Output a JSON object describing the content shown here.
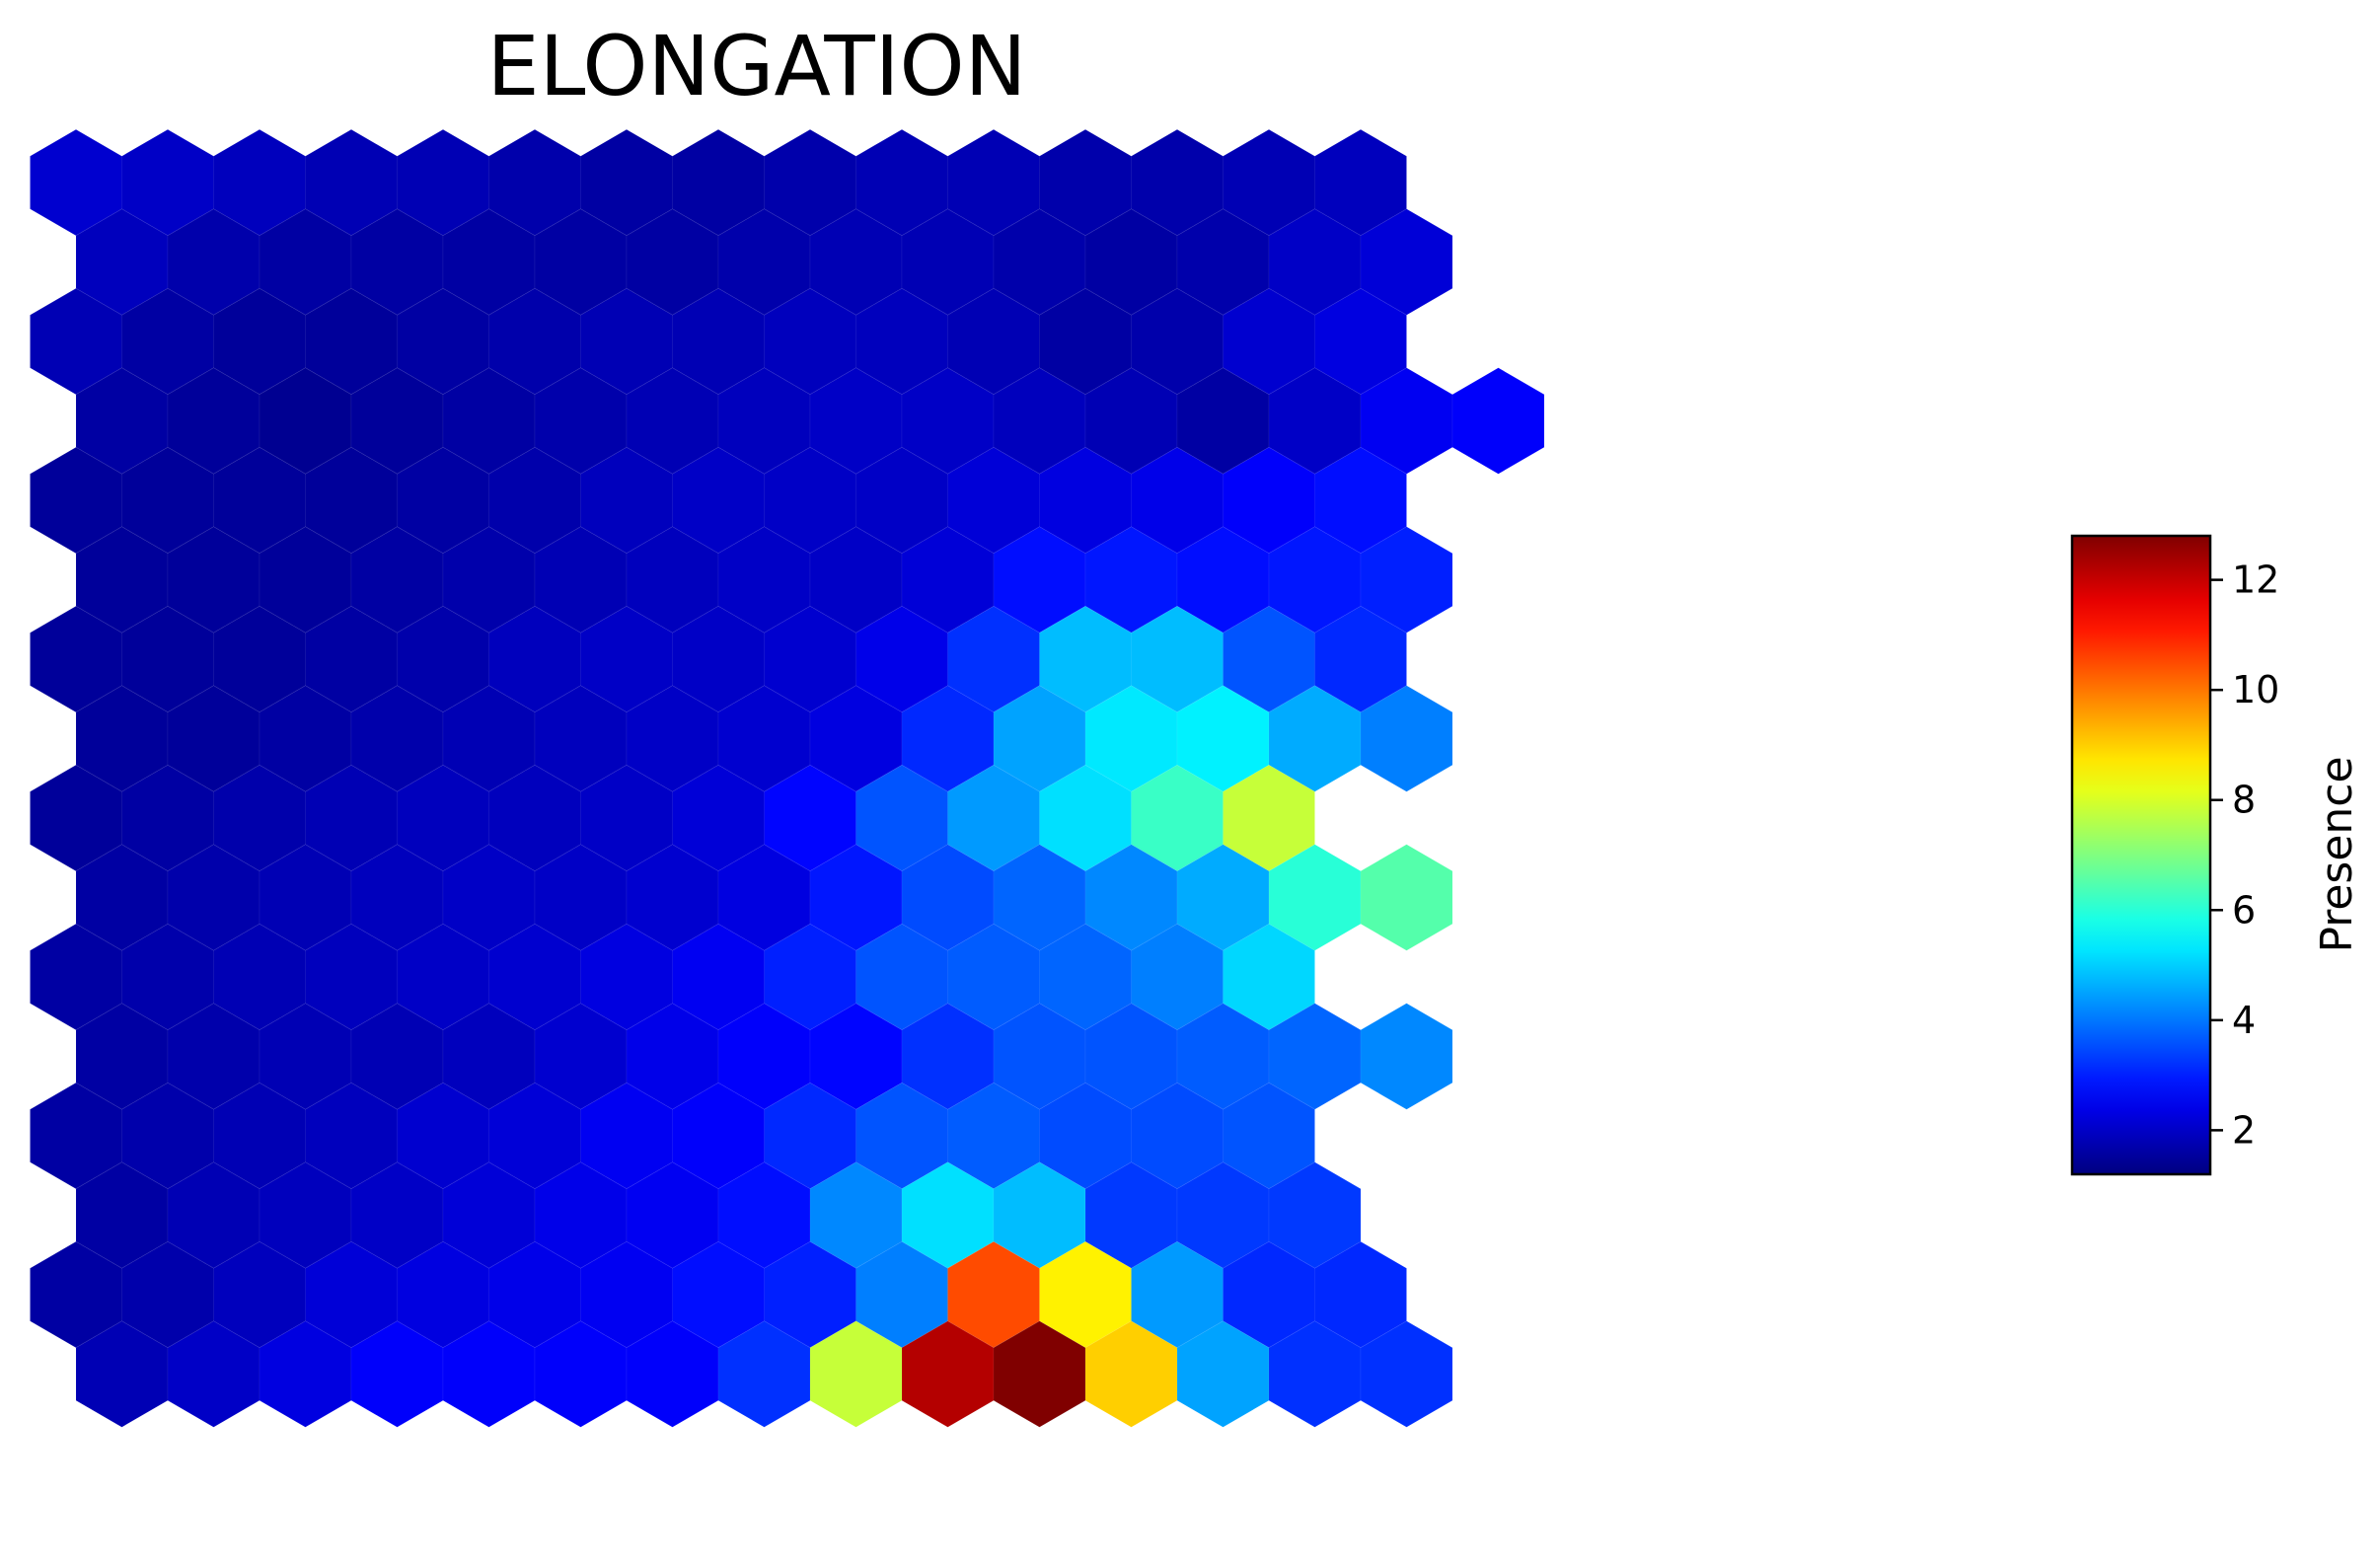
{
  "chart_data": {
    "type": "heatmap",
    "title": "ELONGATION",
    "layout": "hexagonal-grid",
    "colormap": "jet",
    "grid_lines": false,
    "axes_visible": false,
    "legend_placement": "right",
    "colorbar": {
      "label": "Presence",
      "range": [
        1.2,
        12.8
      ],
      "ticks": [
        2,
        4,
        6,
        8,
        10,
        12
      ]
    },
    "rows_top_to_bottom": [
      [
        2.1,
        2.0,
        1.9,
        1.8,
        1.8,
        1.7,
        1.6,
        1.6,
        1.7,
        1.8,
        1.8,
        1.7,
        1.7,
        1.8,
        1.9
      ],
      [
        1.9,
        1.7,
        1.6,
        1.6,
        1.6,
        1.6,
        1.6,
        1.7,
        1.8,
        1.8,
        1.7,
        1.6,
        1.7,
        2.0,
        2.2
      ],
      [
        1.8,
        1.6,
        1.5,
        1.5,
        1.6,
        1.7,
        1.8,
        1.8,
        1.9,
        1.9,
        1.8,
        1.6,
        1.7,
        2.1,
        2.3
      ],
      [
        1.6,
        1.5,
        1.4,
        1.5,
        1.6,
        1.7,
        1.8,
        1.9,
        2.0,
        2.0,
        1.9,
        1.8,
        1.6,
        2.0,
        2.5,
        2.6
      ],
      [
        1.5,
        1.5,
        1.5,
        1.5,
        1.6,
        1.7,
        1.9,
        2.0,
        2.0,
        2.0,
        2.2,
        2.3,
        2.4,
        2.6,
        2.8
      ],
      [
        1.5,
        1.5,
        1.5,
        1.6,
        1.7,
        1.8,
        1.9,
        2.0,
        2.0,
        2.2,
        2.8,
        2.9,
        2.8,
        2.9,
        3.0
      ],
      [
        1.5,
        1.5,
        1.5,
        1.6,
        1.7,
        1.9,
        2.0,
        2.0,
        2.1,
        2.4,
        3.2,
        4.8,
        4.8,
        3.6,
        3.1
      ],
      [
        1.5,
        1.5,
        1.6,
        1.7,
        1.8,
        1.9,
        2.0,
        2.1,
        2.3,
        3.1,
        4.5,
        5.3,
        5.4,
        4.6,
        4.1
      ],
      [
        1.5,
        1.6,
        1.7,
        1.8,
        1.9,
        1.9,
        2.0,
        2.2,
        2.7,
        3.6,
        4.4,
        5.2,
        6.2,
        7.8
      ],
      [
        1.6,
        1.7,
        1.8,
        1.9,
        2.0,
        2.0,
        2.1,
        2.3,
        2.9,
        3.5,
        3.8,
        4.2,
        4.6,
        6.0,
        6.5
      ],
      [
        1.6,
        1.7,
        1.8,
        1.9,
        2.0,
        2.1,
        2.3,
        2.5,
        3.0,
        3.6,
        3.7,
        3.8,
        4.1,
        5.1
      ],
      [
        1.6,
        1.7,
        1.8,
        1.8,
        1.9,
        2.1,
        2.4,
        2.6,
        2.7,
        3.2,
        3.6,
        3.6,
        3.7,
        3.8,
        4.2
      ],
      [
        1.6,
        1.7,
        1.8,
        1.9,
        2.1,
        2.2,
        2.5,
        2.6,
        3.1,
        3.6,
        3.7,
        3.5,
        3.5,
        3.6
      ],
      [
        1.6,
        1.8,
        1.9,
        2.0,
        2.2,
        2.4,
        2.5,
        2.8,
        4.2,
        5.2,
        4.8,
        3.3,
        3.3,
        3.3
      ],
      [
        1.6,
        1.7,
        1.9,
        2.2,
        2.3,
        2.4,
        2.5,
        2.8,
        3.0,
        4.1,
        10.5,
        8.6,
        4.4,
        3.1,
        3.1
      ],
      [
        1.8,
        2.0,
        2.3,
        2.6,
        2.6,
        2.6,
        2.6,
        3.2,
        7.8,
        12.2,
        12.8,
        9.0,
        4.5,
        3.2,
        3.2
      ]
    ]
  }
}
